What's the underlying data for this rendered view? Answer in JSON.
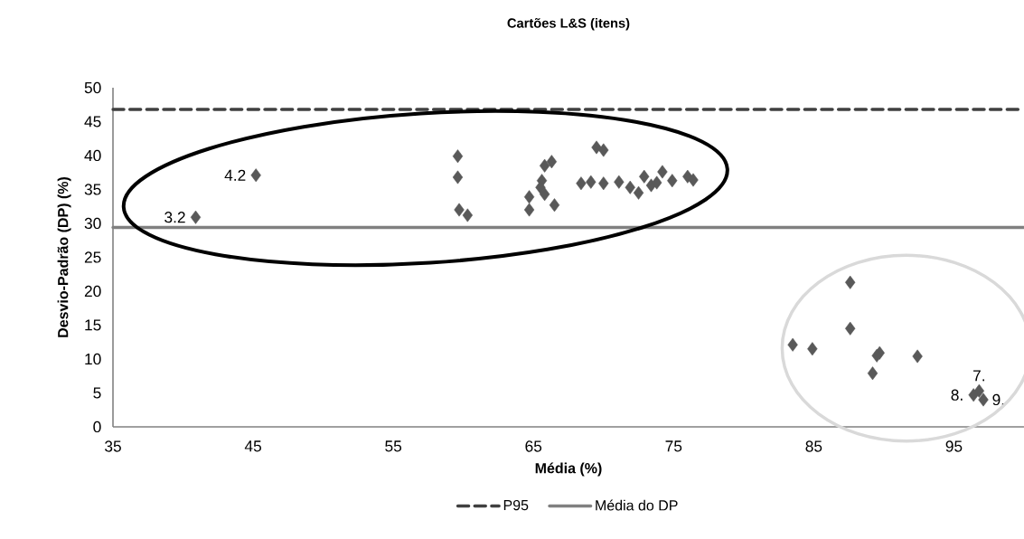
{
  "chart_data": {
    "type": "scatter",
    "title": "Cartões L&S (itens)",
    "xlabel": "Média (%)",
    "ylabel": "Desvio-Padrão (DP) (%)",
    "x": [
      40.9,
      45.2,
      59.6,
      59.6,
      59.7,
      60.3,
      65.8,
      66.3,
      65.6,
      65.5,
      64.7,
      64.7,
      65.8,
      66.5,
      69.5,
      70.0,
      68.4,
      69.1,
      70.0,
      71.1,
      71.9,
      72.5,
      72.9,
      73.4,
      74.2,
      74.9,
      76.0,
      76.4,
      73.8,
      87.6,
      87.6,
      83.5,
      84.9,
      89.7,
      89.5,
      92.4,
      89.2,
      96.8,
      96.4,
      97.1
    ],
    "values": [
      30.9,
      37.1,
      39.9,
      36.8,
      32.0,
      31.2,
      38.5,
      39.1,
      36.3,
      35.3,
      33.9,
      32.0,
      34.3,
      32.7,
      41.2,
      40.8,
      35.9,
      36.1,
      35.9,
      36.1,
      35.3,
      34.5,
      36.9,
      35.6,
      37.6,
      36.3,
      36.9,
      36.4,
      36.0,
      21.3,
      14.5,
      12.1,
      11.5,
      10.9,
      10.5,
      10.4,
      7.9,
      5.3,
      4.7,
      4.0
    ],
    "annotations": [
      {
        "text": "3.2",
        "x": 40.9,
        "y": 30.9
      },
      {
        "text": "4.2",
        "x": 45.2,
        "y": 37.1
      },
      {
        "text": "7.",
        "x": 96.8,
        "y": 5.3
      },
      {
        "text": "8.",
        "x": 96.4,
        "y": 4.7
      },
      {
        "text": "9.",
        "x": 97.1,
        "y": 4.0
      }
    ],
    "color": "#595959",
    "marker": "diamond",
    "xlim": [
      35,
      100
    ],
    "xticks": [
      35,
      45,
      55,
      65,
      75,
      85,
      95
    ],
    "ylim": [
      0,
      50
    ],
    "yticks": [
      0,
      5,
      10,
      15,
      20,
      25,
      30,
      35,
      40,
      45,
      50
    ],
    "ref_lines": [
      {
        "axis": "y",
        "value": 46.8,
        "label": "P95",
        "color": "#404040",
        "line_style": "dashed"
      },
      {
        "axis": "y",
        "value": 29.4,
        "label": "Média do DP",
        "color": "#808080",
        "line_style": "solid"
      }
    ],
    "legend": "bottom",
    "grid": false
  }
}
